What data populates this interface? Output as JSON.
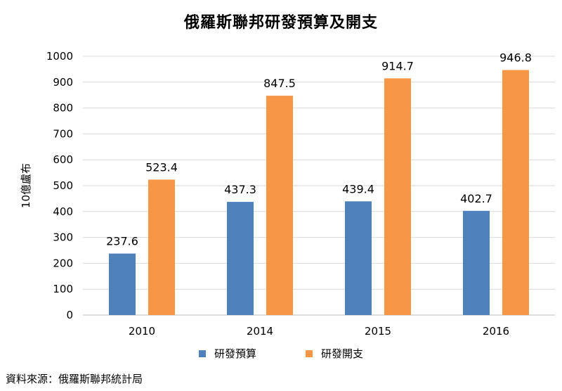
{
  "chart_data": {
    "type": "bar",
    "title": "俄羅斯聯邦研發預算及開支",
    "ylabel": "10億盧布",
    "xlabel": "",
    "categories": [
      "2010",
      "2014",
      "2015",
      "2016"
    ],
    "series": [
      {
        "name": "研發預算",
        "values": [
          237.6,
          437.3,
          439.4,
          402.7
        ],
        "labels": [
          "237.6",
          "437.3",
          "439.4",
          "402.7"
        ],
        "color": "#4f81bd"
      },
      {
        "name": "研發開支",
        "values": [
          523.4,
          847.5,
          914.7,
          946.8
        ],
        "labels": [
          "523.4",
          "847.5",
          "914.7",
          "946.8"
        ],
        "color": "#f79646"
      }
    ],
    "ylim": [
      0,
      1000
    ],
    "yticks": [
      "0",
      "100",
      "200",
      "300",
      "400",
      "500",
      "600",
      "700",
      "800",
      "900",
      "1000"
    ],
    "grid": true,
    "legend": "bottom"
  },
  "source": "資料來源：俄羅斯聯邦統計局"
}
